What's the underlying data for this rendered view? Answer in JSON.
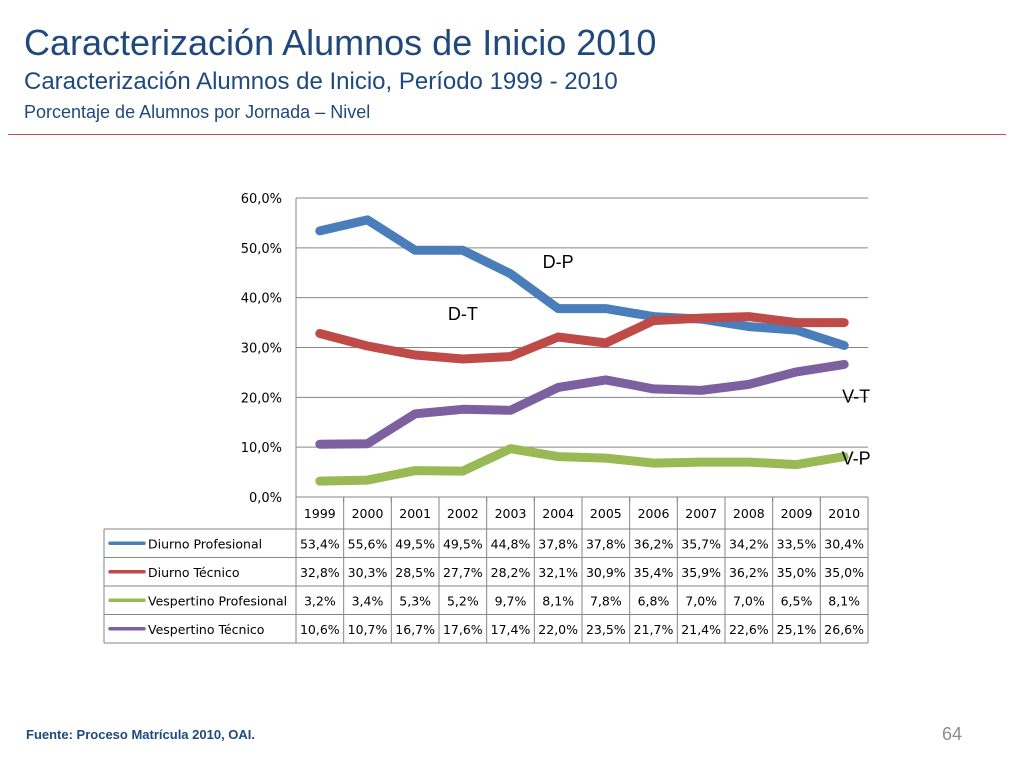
{
  "header": {
    "title": "Caracterización Alumnos de Inicio 2010",
    "subtitle": "Caracterización Alumnos de Inicio, Período 1999 - 2010",
    "subtitle2": "Porcentaje de Alumnos por Jornada – Nivel"
  },
  "footer": {
    "source": "Fuente: Proceso Matrícula 2010, OAI.",
    "page_number": "64"
  },
  "chart_data": {
    "type": "line",
    "x": [
      "1999",
      "2000",
      "2001",
      "2002",
      "2003",
      "2004",
      "2005",
      "2006",
      "2007",
      "2008",
      "2009",
      "2010"
    ],
    "ylim": [
      0,
      60
    ],
    "yticks": [
      0,
      10,
      20,
      30,
      40,
      50,
      60
    ],
    "ytick_labels": [
      "0,0%",
      "10,0%",
      "20,0%",
      "30,0%",
      "40,0%",
      "50,0%",
      "60,0%"
    ],
    "grid": true,
    "series": [
      {
        "name": "Diurno Profesional",
        "color": "#4a7ebb",
        "values": [
          53.4,
          55.6,
          49.5,
          49.5,
          44.8,
          37.8,
          37.8,
          36.2,
          35.7,
          34.2,
          33.5,
          30.4
        ],
        "labels": [
          "53,4%",
          "55,6%",
          "49,5%",
          "49,5%",
          "44,8%",
          "37,8%",
          "37,8%",
          "36,2%",
          "35,7%",
          "34,2%",
          "33,5%",
          "30,4%"
        ]
      },
      {
        "name": "Diurno Técnico",
        "color": "#be4b48",
        "values": [
          32.8,
          30.3,
          28.5,
          27.7,
          28.2,
          32.1,
          30.9,
          35.4,
          35.9,
          36.2,
          35.0,
          35.0
        ],
        "labels": [
          "32,8%",
          "30,3%",
          "28,5%",
          "27,7%",
          "28,2%",
          "32,1%",
          "30,9%",
          "35,4%",
          "35,9%",
          "36,2%",
          "35,0%",
          "35,0%"
        ]
      },
      {
        "name": "Vespertino Profesional",
        "color": "#98b954",
        "values": [
          3.2,
          3.4,
          5.3,
          5.2,
          9.7,
          8.1,
          7.8,
          6.8,
          7.0,
          7.0,
          6.5,
          8.1
        ],
        "labels": [
          "3,2%",
          "3,4%",
          "5,3%",
          "5,2%",
          "9,7%",
          "8,1%",
          "7,8%",
          "6,8%",
          "7,0%",
          "7,0%",
          "6,5%",
          "8,1%"
        ]
      },
      {
        "name": "Vespertino Técnico",
        "color": "#7d60a0",
        "values": [
          10.6,
          10.7,
          16.7,
          17.6,
          17.4,
          22.0,
          23.5,
          21.7,
          21.4,
          22.6,
          25.1,
          26.6
        ],
        "labels": [
          "10,6%",
          "10,7%",
          "16,7%",
          "17,6%",
          "17,4%",
          "22,0%",
          "23,5%",
          "21,7%",
          "21,4%",
          "22,6%",
          "25,1%",
          "26,6%"
        ]
      }
    ],
    "annotations": [
      {
        "text": "D-P",
        "x": "2004",
        "y": 46
      },
      {
        "text": "D-T",
        "x": "2002",
        "y": 35.5
      },
      {
        "text": "V-T",
        "x": "2010",
        "y": 19
      },
      {
        "text": "V-P",
        "x": "2010",
        "y": 6.5
      }
    ]
  }
}
